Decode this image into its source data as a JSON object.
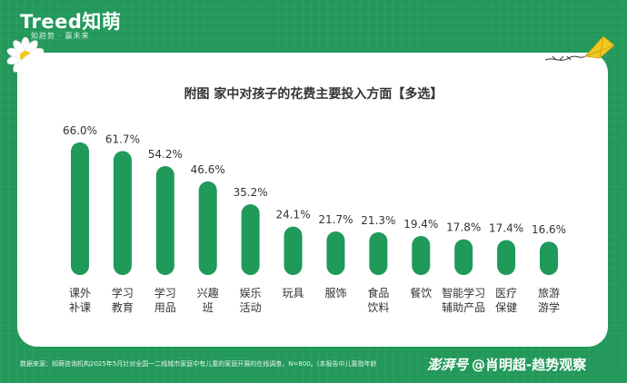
{
  "header": {
    "brand": "Treed知萌",
    "tagline": "知趋势 · 赢未来"
  },
  "chart_data": {
    "type": "bar",
    "title": "附图  家中对孩子的花费主要投入方面【多选】",
    "categories": [
      [
        "课外",
        "补课"
      ],
      [
        "学习",
        "教育"
      ],
      [
        "学习",
        "用品"
      ],
      [
        "兴趣",
        "班"
      ],
      [
        "娱乐",
        "活动"
      ],
      [
        "玩具"
      ],
      [
        "服饰"
      ],
      [
        "食品",
        "饮料"
      ],
      [
        "餐饮"
      ],
      [
        "智能学习",
        "辅助产品"
      ],
      [
        "医疗",
        "保健"
      ],
      [
        "旅游",
        "游学"
      ]
    ],
    "values": [
      66.0,
      61.7,
      54.2,
      46.6,
      35.2,
      24.1,
      21.7,
      21.3,
      19.4,
      17.8,
      17.4,
      16.6
    ],
    "value_labels": [
      "66.0%",
      "61.7%",
      "54.2%",
      "46.6%",
      "35.2%",
      "24.1%",
      "21.7%",
      "21.3%",
      "19.4%",
      "17.8%",
      "17.4%",
      "16.6%"
    ],
    "ylim": [
      0,
      70
    ],
    "unit": "%",
    "xlabel": "",
    "ylabel": "",
    "bar_color": "#1f9a5a"
  },
  "footer": {
    "source": "数据来源：知萌咨询机构2025年5月针对全国一二线城市家庭中有儿童的家庭开展的在线调查，N=800。(本报告中儿童指年龄",
    "watermark_logo": "澎湃号",
    "watermark_author": "@肖明超-趋势观察"
  },
  "colors": {
    "background": "#22985a",
    "card": "#ffffff",
    "bar": "#1f9a5a",
    "text": "#333333"
  }
}
